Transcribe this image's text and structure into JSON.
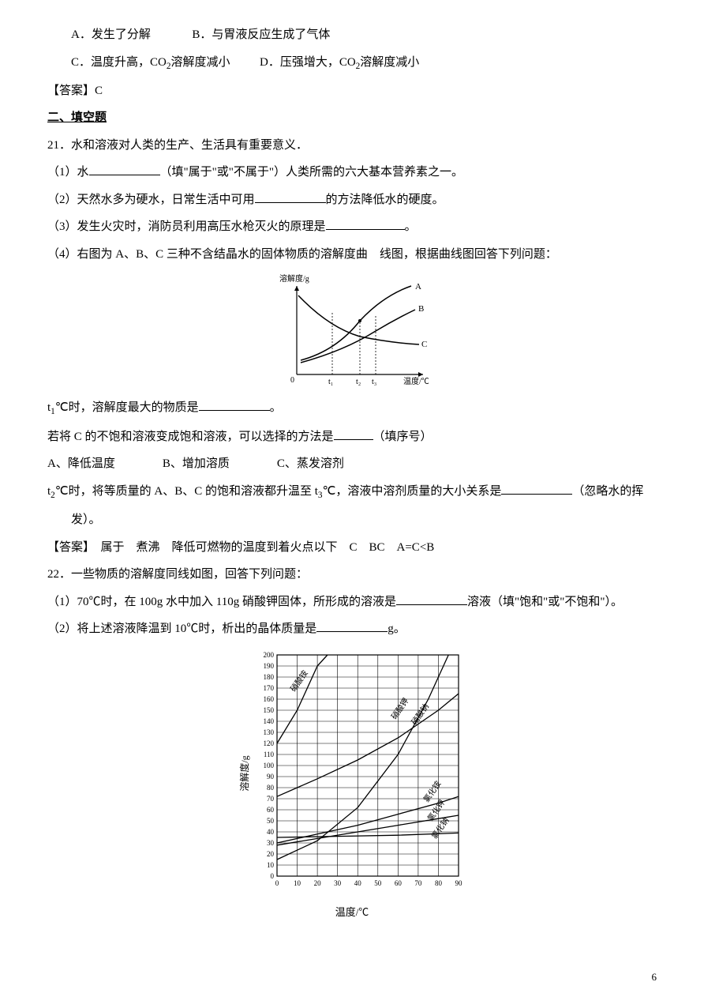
{
  "q20": {
    "optA": "A．发生了分解",
    "optB": "B．与胃液反应生成了气体",
    "optC_prefix": "C．温度升高，CO",
    "optC_sub": "2",
    "optC_suffix": "溶解度减小",
    "optD_prefix": "D．压强增大，CO",
    "optD_sub": "2",
    "optD_suffix": "溶解度减小",
    "answer": "【答案】C"
  },
  "section2": "二、填空题",
  "q21": {
    "stem": "21．水和溶液对人类的生产、生活具有重要意义．",
    "p1a": "（1）水",
    "p1b": "（填\"属于\"或\"不属于\"）人类所需的六大基本营养素之一。",
    "p2a": "（2）天然水多为硬水，日常生活中可用",
    "p2b": "的方法降低水的硬度。",
    "p3a": "（3）发生火灾时，消防员利用高压水枪灭火的原理是",
    "p3b": "。",
    "p4": "（4）右图为 A、B、C 三种不含结晶水的固体物质的溶解度曲　线图，根据曲线图回答下列问题：",
    "chart1": {
      "ylabel": "溶解度/g",
      "xlabel": "温度/℃",
      "labels": [
        "A",
        "B",
        "C"
      ],
      "ticks": [
        "t₁",
        "t₂",
        "t₃"
      ],
      "stroke": "#000000",
      "bg": "#ffffff"
    },
    "sub1a": "t",
    "sub1b": "1",
    "sub1c": "℃时，溶解度最大的物质是",
    "sub1d": "。",
    "sub2a": "若将 C 的不饱和溶液变成饱和溶液，可以选择的方法是",
    "sub2b": "（填序号）",
    "sub2opts": "A、降低温度　　　　B、增加溶质　　　　C、蒸发溶剂",
    "sub3a": "t",
    "sub3b": "2",
    "sub3c": "℃时，将等质量的 A、B、C 的饱和溶液都升温至 t",
    "sub3d": "3",
    "sub3e": "℃，溶液中溶剂质量的大小关系是",
    "sub3f": "（忽略水的挥",
    "sub3g": "发）。",
    "answer": "【答案】　属于　煮沸　降低可燃物的温度到着火点以下　C　BC　A=C<B"
  },
  "q22": {
    "stem": "22．一些物质的溶解度同线如图，回答下列问题：",
    "p1a": "（1）70℃时，在 100g 水中加入 110g 硝酸钾固体，所形成的溶液是",
    "p1b": "溶液（填\"饱和\"或\"不饱和\"）。",
    "p2a": "（2）将上述溶液降温到 10℃时，析出的晶体质量是",
    "p2b": "g。",
    "chart2": {
      "ylabel": "溶解度/g",
      "xlabel": "温度/℃",
      "yticks": [
        0,
        10,
        20,
        30,
        40,
        50,
        60,
        70,
        80,
        90,
        100,
        110,
        120,
        130,
        140,
        150,
        160,
        170,
        180,
        190,
        200
      ],
      "xticks": [
        0,
        10,
        20,
        30,
        40,
        50,
        60,
        70,
        80,
        90
      ],
      "series": {
        "硝酸铵": [
          [
            0,
            120
          ],
          [
            10,
            150
          ],
          [
            20,
            190
          ],
          [
            25,
            200
          ]
        ],
        "硝酸钾": [
          [
            0,
            15
          ],
          [
            20,
            32
          ],
          [
            40,
            62
          ],
          [
            60,
            110
          ],
          [
            75,
            160
          ],
          [
            85,
            200
          ]
        ],
        "硝酸钠": [
          [
            0,
            72
          ],
          [
            20,
            88
          ],
          [
            40,
            105
          ],
          [
            60,
            125
          ],
          [
            80,
            150
          ],
          [
            90,
            165
          ]
        ],
        "氯化铵": [
          [
            0,
            30
          ],
          [
            20,
            38
          ],
          [
            40,
            46
          ],
          [
            60,
            56
          ],
          [
            80,
            66
          ],
          [
            90,
            72
          ]
        ],
        "氯化钾": [
          [
            0,
            28
          ],
          [
            20,
            34
          ],
          [
            40,
            40
          ],
          [
            60,
            46
          ],
          [
            80,
            52
          ],
          [
            90,
            55
          ]
        ],
        "氯化钠": [
          [
            0,
            35
          ],
          [
            30,
            36
          ],
          [
            60,
            37
          ],
          [
            90,
            39
          ]
        ]
      },
      "stroke": "#000000",
      "grid": "#000000",
      "bg": "#ffffff"
    }
  },
  "pageNum": "6"
}
